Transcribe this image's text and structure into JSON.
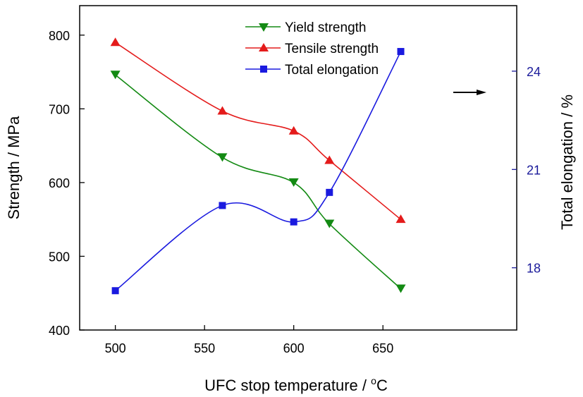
{
  "chart_data": {
    "type": "line",
    "x": [
      500,
      560,
      600,
      620,
      660
    ],
    "xlabel": "UFC stop temperature / ",
    "xlabel_unit": "C",
    "xlabel_sup": "o",
    "xlim": [
      480,
      725
    ],
    "xticks": [
      500,
      550,
      600,
      650
    ],
    "ylabel": "Strength / MPa",
    "ylim": [
      400,
      840
    ],
    "yticks": [
      400,
      500,
      600,
      700,
      800
    ],
    "y2label": "Total elongation / %",
    "y2lim": [
      16.1,
      26.0
    ],
    "y2ticks": [
      18,
      21,
      24
    ],
    "legend_position": "top-center",
    "series": [
      {
        "name": "Yield strength",
        "axis": "left",
        "marker": "triangle-down",
        "color": "#138a13",
        "values": [
          746,
          634,
          600,
          544,
          456
        ]
      },
      {
        "name": "Tensile strength",
        "axis": "left",
        "marker": "triangle-up",
        "color": "#e41b1b",
        "values": [
          790,
          697,
          670,
          630,
          550
        ]
      },
      {
        "name": "Total elongation",
        "axis": "right",
        "marker": "square",
        "color": "#1a1adf",
        "values": [
          17.3,
          19.9,
          19.4,
          20.3,
          24.6
        ]
      }
    ],
    "axis_colors": {
      "left": "#000000",
      "right": "#1a1a9a"
    }
  }
}
